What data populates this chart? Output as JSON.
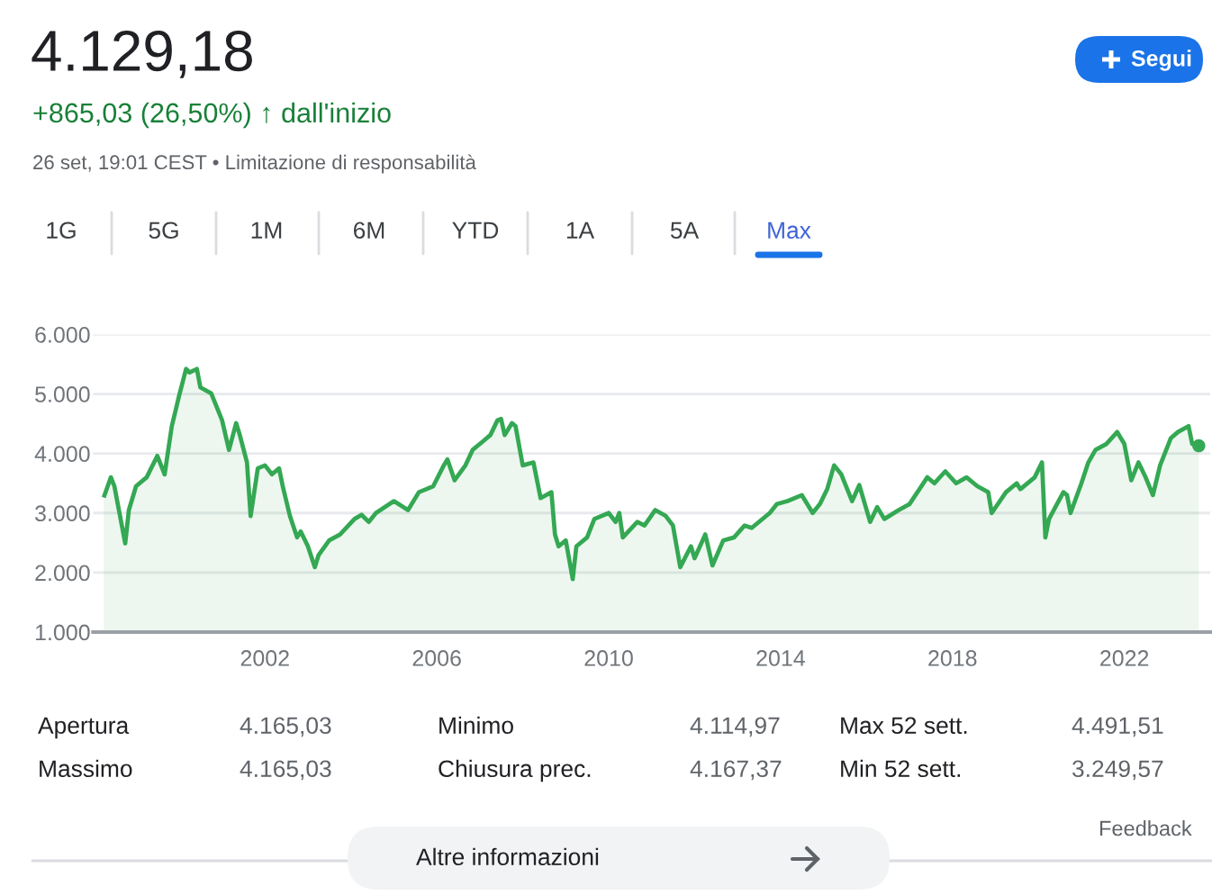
{
  "chart_data": {
    "type": "area",
    "title": "4.129,18",
    "subtitle": "+865,03 (26,50%) ↑ dall'inizio",
    "annotations": [
      "26 set, 19:01 CEST • Limitazione di responsabilità",
      "Segui",
      "1G",
      "5G",
      "1M",
      "6M",
      "YTD",
      "1A",
      "5A",
      "Max",
      "Apertura",
      "4.165,03",
      "Minimo",
      "4.114,97",
      "Max 52 sett.",
      "4.491,51",
      "Massimo",
      "4.165,03",
      "Chiusura prec.",
      "4.167,37",
      "Min 52 sett.",
      "3.249,57",
      "Feedback",
      "Altre informazioni"
    ],
    "x": [
      "1998-04",
      "1998-06",
      "1998-07",
      "1998-10",
      "1998-11",
      "1999-01",
      "1999-04",
      "1999-07",
      "1999-09",
      "1999-11",
      "2000-01",
      "2000-03",
      "2000-04",
      "2000-06",
      "2000-07",
      "2000-10",
      "2000-12",
      "2001-01",
      "2001-03",
      "2001-05",
      "2001-06",
      "2001-08",
      "2001-09",
      "2001-11",
      "2002-01",
      "2002-03",
      "2002-05",
      "2002-06",
      "2002-08",
      "2002-10",
      "2002-11",
      "2003-01",
      "2003-03",
      "2003-04",
      "2003-07",
      "2003-10",
      "2004-02",
      "2004-04",
      "2004-06",
      "2004-08",
      "2005-01",
      "2005-05",
      "2005-08",
      "2005-10",
      "2005-12",
      "2006-03",
      "2006-04",
      "2006-06",
      "2006-09",
      "2006-11",
      "2007-02",
      "2007-04",
      "2007-06",
      "2007-07",
      "2007-08",
      "2007-10",
      "2007-11",
      "2008-01",
      "2008-04",
      "2008-06",
      "2008-09",
      "2008-10",
      "2008-11",
      "2009-01",
      "2009-03",
      "2009-04",
      "2009-07",
      "2009-09",
      "2010-01",
      "2010-03",
      "2010-04",
      "2010-05",
      "2010-09",
      "2010-11",
      "2011-02",
      "2011-05",
      "2011-07",
      "2011-09",
      "2011-12",
      "2012-01",
      "2012-04",
      "2012-06",
      "2012-09",
      "2012-12",
      "2013-03",
      "2013-05",
      "2013-10",
      "2013-12",
      "2014-03",
      "2014-07",
      "2014-10",
      "2014-12",
      "2015-02",
      "2015-04",
      "2015-06",
      "2015-09",
      "2015-11",
      "2016-02",
      "2016-04",
      "2016-06",
      "2016-10",
      "2017-01",
      "2017-06",
      "2017-08",
      "2017-11",
      "2018-02",
      "2018-05",
      "2018-08",
      "2018-11",
      "2018-12",
      "2019-04",
      "2019-07",
      "2019-08",
      "2019-12",
      "2020-02",
      "2020-03",
      "2020-04",
      "2020-08",
      "2020-09",
      "2020-10",
      "2021-01",
      "2021-03",
      "2021-05",
      "2021-08",
      "2021-11",
      "2022-01",
      "2022-03",
      "2022-05",
      "2022-07",
      "2022-09",
      "2022-11",
      "2023-02",
      "2023-04",
      "2023-07",
      "2023-08",
      "2023-09-26"
    ],
    "series": [
      {
        "color": "#34a853",
        "values": [
          3260,
          3600,
          3450,
          2490,
          3050,
          3450,
          3600,
          3960,
          3650,
          4460,
          4960,
          5420,
          5360,
          5420,
          5110,
          5010,
          4710,
          4560,
          4060,
          4510,
          4310,
          3850,
          2950,
          3750,
          3800,
          3650,
          3750,
          3450,
          2950,
          2590,
          2690,
          2440,
          2090,
          2290,
          2540,
          2640,
          2900,
          2970,
          2850,
          3000,
          3200,
          3050,
          3350,
          3400,
          3450,
          3800,
          3900,
          3550,
          3800,
          4060,
          4210,
          4310,
          4560,
          4580,
          4310,
          4510,
          4460,
          3800,
          3850,
          3250,
          3350,
          2640,
          2440,
          2540,
          1890,
          2440,
          2590,
          2900,
          3000,
          2850,
          3000,
          2590,
          2850,
          2790,
          3050,
          2950,
          2790,
          2090,
          2440,
          2240,
          2640,
          2120,
          2540,
          2590,
          2790,
          2750,
          3000,
          3150,
          3200,
          3300,
          3000,
          3150,
          3400,
          3800,
          3650,
          3200,
          3470,
          2850,
          3100,
          2900,
          3050,
          3150,
          3600,
          3500,
          3700,
          3500,
          3600,
          3450,
          3350,
          3000,
          3350,
          3500,
          3400,
          3600,
          3850,
          2590,
          2900,
          3350,
          3300,
          3000,
          3500,
          3850,
          4060,
          4160,
          4360,
          4160,
          3550,
          3850,
          3600,
          3300,
          3800,
          4260,
          4360,
          4460,
          4160,
          4130
        ]
      },
      {
        "type": "scatter",
        "color": "#34a853",
        "x": [
          "2023-09-26"
        ],
        "values": [
          4130
        ]
      }
    ],
    "xlim": [
      "1998-01",
      "2024-01"
    ],
    "xticks": [
      "2002",
      "2006",
      "2010",
      "2014",
      "2018",
      "2022"
    ],
    "ylim": [
      1000,
      6000
    ],
    "yticks": [
      {
        "value": 1000,
        "label": "1.000"
      },
      {
        "value": 2000,
        "label": "2.000"
      },
      {
        "value": 3000,
        "label": "3.000"
      },
      {
        "value": 4000,
        "label": "4.000"
      },
      {
        "value": 5000,
        "label": "5.000"
      },
      {
        "value": 6000,
        "label": "6.000"
      }
    ],
    "grid": "y"
  }
}
